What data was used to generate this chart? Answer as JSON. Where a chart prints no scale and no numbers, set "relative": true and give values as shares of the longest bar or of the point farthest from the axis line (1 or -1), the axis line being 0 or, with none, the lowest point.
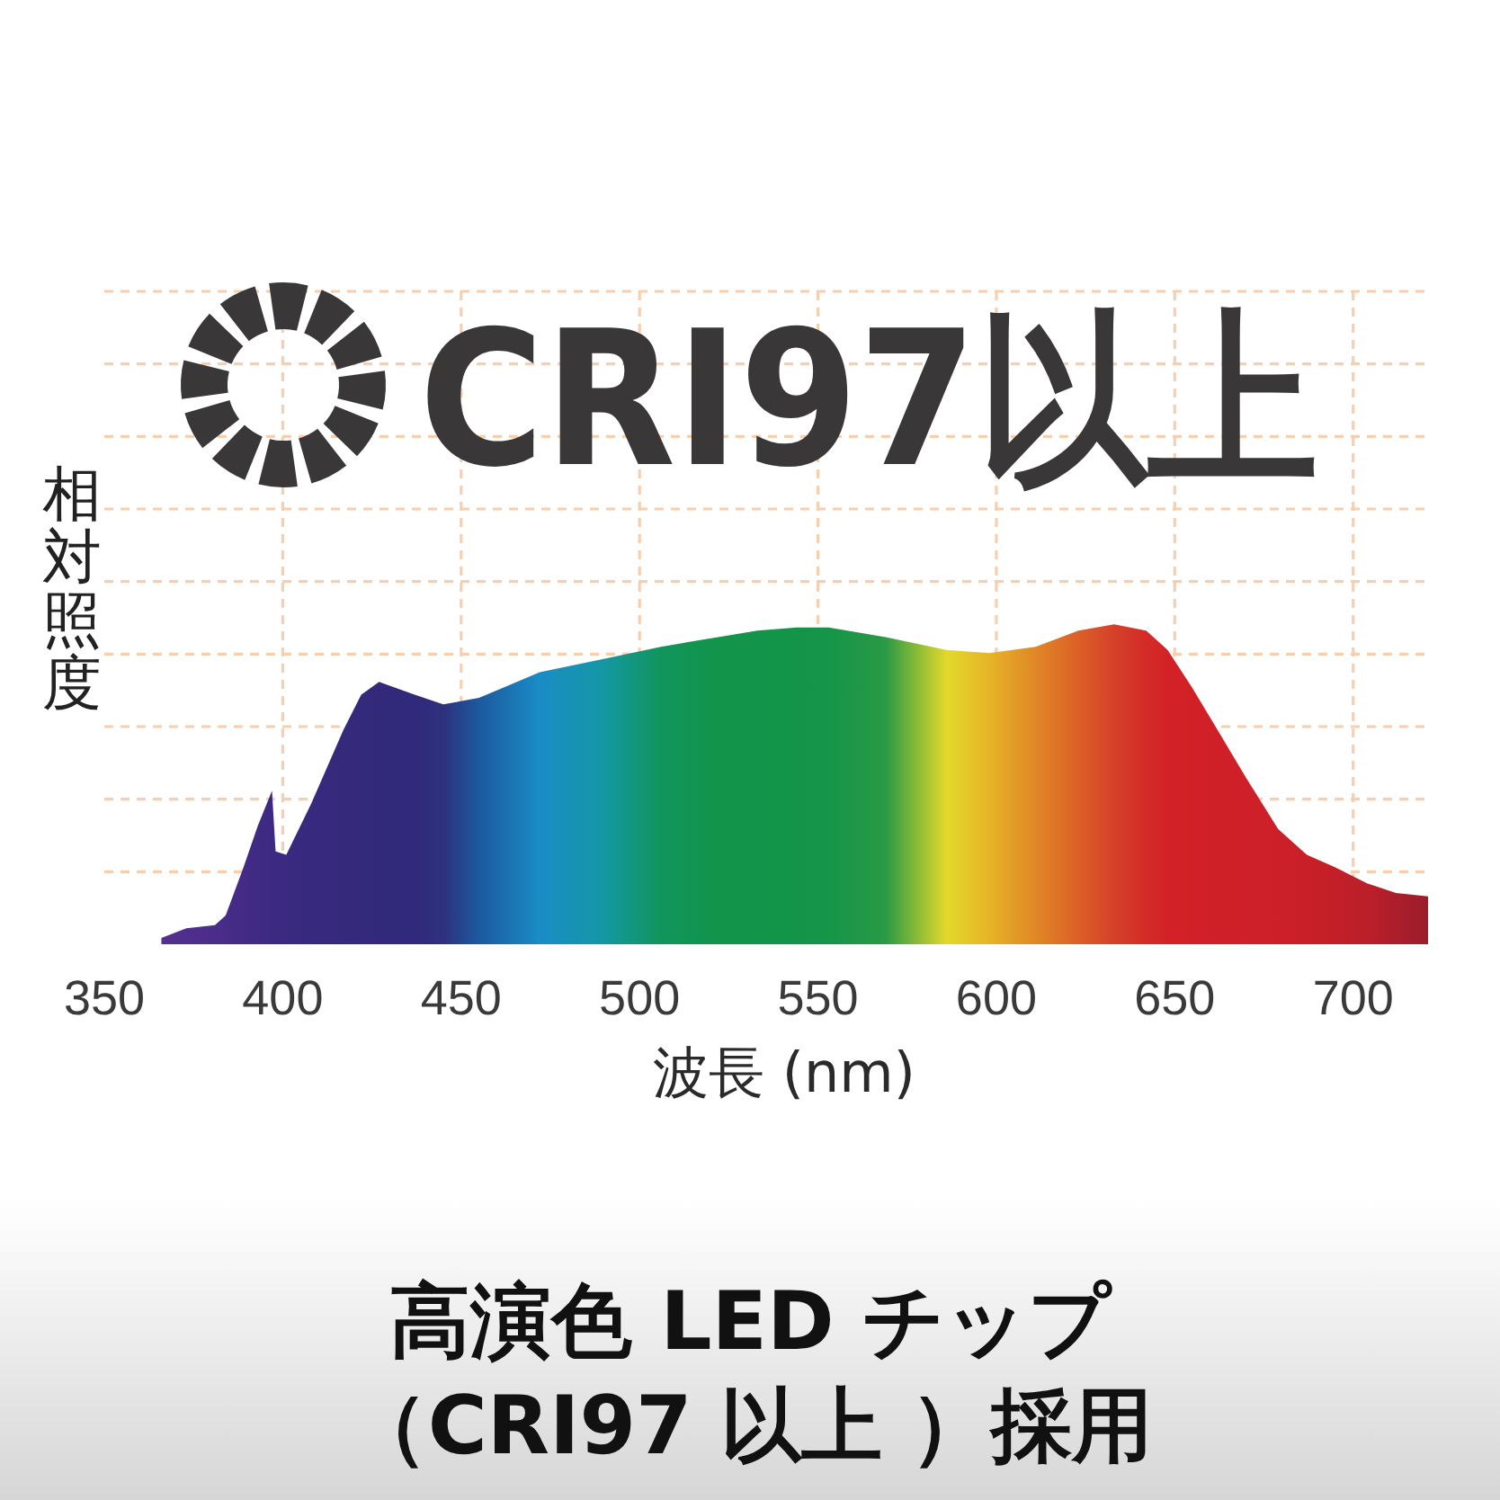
{
  "chart_data": {
    "type": "area",
    "title": "CRI97以上",
    "xlabel": "波長 (nm)",
    "ylabel": "相対照度",
    "relative": true,
    "x": [
      366,
      373,
      381,
      384,
      389,
      393,
      397,
      398,
      401,
      408,
      417,
      422,
      427,
      437,
      445,
      455,
      472,
      489,
      506,
      522,
      533,
      544,
      553,
      569,
      586,
      598,
      611,
      623,
      633,
      642,
      648,
      655,
      662,
      670,
      679,
      687,
      695,
      704,
      712,
      721
    ],
    "values": [
      0.02,
      0.05,
      0.06,
      0.09,
      0.24,
      0.37,
      0.48,
      0.29,
      0.28,
      0.44,
      0.67,
      0.78,
      0.82,
      0.78,
      0.75,
      0.77,
      0.85,
      0.89,
      0.93,
      0.96,
      0.98,
      0.99,
      0.99,
      0.96,
      0.92,
      0.91,
      0.93,
      0.98,
      1,
      0.98,
      0.92,
      0.8,
      0.67,
      0.52,
      0.36,
      0.28,
      0.24,
      0.19,
      0.16,
      0.15
    ],
    "colors": [
      "#55308f",
      "#4f2e8c",
      "#4a2d89",
      "#472c88",
      "#432b86",
      "#3f2a84",
      "#3c2a82",
      "#3c2a82",
      "#3a2a80",
      "#372a7e",
      "#35297c",
      "#34297b",
      "#33297b",
      "#31297b",
      "#2e317f",
      "#1b5a9e",
      "#1a8cc6",
      "#1597a6",
      "#11955c",
      "#12944a",
      "#12944a",
      "#139449",
      "#149548",
      "#2a9a45",
      "#e2d92a",
      "#e6b428",
      "#e08726",
      "#dc5f27",
      "#d5412a",
      "#d42b28",
      "#d32227",
      "#d22027",
      "#d02027",
      "#cf2028",
      "#cc2028",
      "#c91f28",
      "#c31f29",
      "#bb1f2a",
      "#ab1e2a",
      "#9b1d2a"
    ],
    "xlim": [
      350,
      722
    ],
    "xticks": [
      350,
      400,
      450,
      500,
      550,
      600,
      650,
      700
    ],
    "grid": true,
    "annotations": [
      "高演色 LED チップ",
      "（CRI97 以上 ）採用"
    ]
  }
}
